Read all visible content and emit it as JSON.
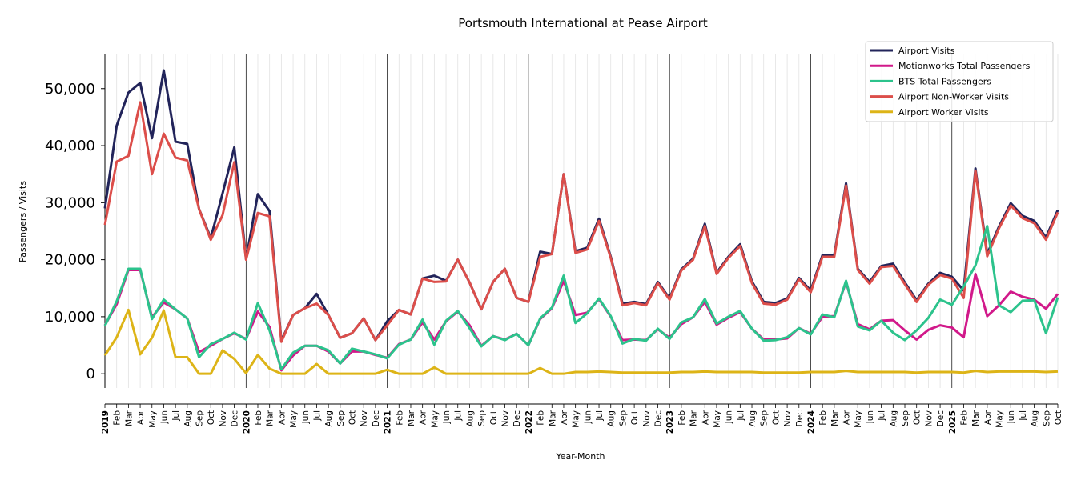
{
  "chart_data": {
    "type": "line",
    "title": "Portsmouth International at Pease Airport",
    "xlabel": "Year-Month",
    "ylabel": "Passengers / Visits",
    "ylim": [
      -2500,
      56000
    ],
    "yticks": [
      0,
      10000,
      20000,
      30000,
      40000,
      50000
    ],
    "ytick_labels": [
      "0",
      "10,000",
      "20,000",
      "30,000",
      "40,000",
      "50,000"
    ],
    "grid": "vertical monthly",
    "legend_position": "top-right",
    "categories": [
      "2019",
      "Feb",
      "Mar",
      "Apr",
      "May",
      "Jun",
      "Jul",
      "Aug",
      "Sep",
      "Oct",
      "Nov",
      "Dec",
      "2020",
      "Feb",
      "Mar",
      "Apr",
      "May",
      "Jun",
      "Jul",
      "Aug",
      "Sep",
      "Oct",
      "Nov",
      "Dec",
      "2021",
      "Feb",
      "Mar",
      "Apr",
      "May",
      "Jun",
      "Jul",
      "Aug",
      "Sep",
      "Oct",
      "Nov",
      "Dec",
      "2022",
      "Feb",
      "Mar",
      "Apr",
      "May",
      "Jun",
      "Jul",
      "Aug",
      "Sep",
      "Oct",
      "Nov",
      "Dec",
      "2023",
      "Feb",
      "Mar",
      "Apr",
      "May",
      "Jun",
      "Jul",
      "Aug",
      "Sep",
      "Oct",
      "Nov",
      "Dec",
      "2024",
      "Feb",
      "Mar",
      "Apr",
      "May",
      "Jun",
      "Jul",
      "Aug",
      "Sep",
      "Oct",
      "Nov",
      "Dec",
      "2025",
      "Feb",
      "Mar",
      "Apr",
      "May",
      "Jun",
      "Jul",
      "Aug",
      "Sep",
      "Oct"
    ],
    "series": [
      {
        "name": "Airport Visits",
        "color": "#22245a",
        "values": [
          29000,
          43500,
          49300,
          51000,
          41300,
          53200,
          40700,
          40300,
          28900,
          23800,
          31600,
          39700,
          20100,
          31500,
          28500,
          5800,
          10300,
          11500,
          14000,
          10300,
          6300,
          7100,
          9700,
          5900,
          9200,
          11200,
          10400,
          16700,
          17200,
          16300,
          20000,
          16000,
          11300,
          16100,
          18400,
          13300,
          12600,
          21400,
          21000,
          35000,
          21500,
          22100,
          27200,
          20500,
          12300,
          12600,
          12200,
          16100,
          13200,
          18300,
          20200,
          26300,
          17700,
          20500,
          22700,
          16200,
          12600,
          12400,
          13200,
          16800,
          14600,
          20800,
          20800,
          33400,
          18400,
          16100,
          18900,
          19300,
          16000,
          12900,
          15800,
          17700,
          17000,
          14600,
          36000,
          21000,
          25800,
          29900,
          27700,
          26800,
          23900,
          28700
        ]
      },
      {
        "name": "Motionworks Total Passengers",
        "color": "#d1198a",
        "values": [
          8500,
          12200,
          18200,
          18200,
          9900,
          12500,
          11300,
          9700,
          3800,
          4900,
          6100,
          7100,
          6100,
          10900,
          8200,
          600,
          3200,
          4900,
          4900,
          3900,
          1800,
          3900,
          3900,
          3300,
          2800,
          5200,
          6000,
          9000,
          6000,
          9200,
          10900,
          8500,
          4900,
          6600,
          6000,
          7000,
          5000,
          9600,
          11500,
          16300,
          10300,
          10700,
          13100,
          10000,
          5900,
          6000,
          5900,
          7800,
          6300,
          8700,
          9900,
          12600,
          8600,
          9800,
          10800,
          7900,
          6000,
          6000,
          6200,
          8000,
          7000,
          10000,
          10100,
          16100,
          8700,
          7800,
          9300,
          9400,
          7600,
          6000,
          7700,
          8500,
          8100,
          6400,
          17500,
          10100,
          12000,
          14400,
          13500,
          13000,
          11400,
          14000
        ]
      },
      {
        "name": "BTS Total Passengers",
        "color": "#2cc38c",
        "values": [
          8400,
          12700,
          18400,
          18400,
          9600,
          13000,
          11300,
          9700,
          2900,
          5200,
          6100,
          7200,
          6000,
          12400,
          7600,
          800,
          3700,
          4900,
          4900,
          4100,
          1800,
          4400,
          3900,
          3400,
          2700,
          5100,
          6000,
          9500,
          5100,
          9300,
          11000,
          8000,
          4800,
          6600,
          5900,
          7000,
          5000,
          9700,
          11600,
          17200,
          8900,
          10600,
          13200,
          10100,
          5300,
          6100,
          5800,
          7900,
          6100,
          9000,
          9900,
          13100,
          8800,
          10000,
          11000,
          7900,
          5800,
          5900,
          6400,
          8000,
          6900,
          10400,
          9900,
          16300,
          8300,
          7600,
          9300,
          7200,
          5900,
          7600,
          9800,
          13000,
          12100,
          15300,
          19000,
          25900,
          12000,
          10800,
          12800,
          12900,
          7100,
          13400
        ]
      },
      {
        "name": "Airport Non-Worker Visits",
        "color": "#dc4e4a",
        "values": [
          26100,
          37200,
          38200,
          47600,
          35000,
          42100,
          37900,
          37400,
          28900,
          23500,
          27800,
          37100,
          20000,
          28200,
          27600,
          5600,
          10300,
          11500,
          12300,
          10300,
          6300,
          7100,
          9700,
          5900,
          8500,
          11200,
          10400,
          16700,
          16100,
          16200,
          20000,
          16000,
          11300,
          16100,
          18400,
          13300,
          12600,
          20500,
          21000,
          35000,
          21200,
          21800,
          26800,
          20300,
          12000,
          12400,
          12000,
          15900,
          13000,
          18100,
          20000,
          25900,
          17500,
          20300,
          22400,
          15900,
          12300,
          12100,
          13000,
          16600,
          14300,
          20500,
          20500,
          33000,
          18200,
          15800,
          18700,
          18900,
          15700,
          12600,
          15600,
          17300,
          16700,
          13300,
          35600,
          20600,
          25500,
          29500,
          27300,
          26400,
          23500,
          28300
        ]
      },
      {
        "name": "Airport Worker Visits",
        "color": "#ddb417",
        "values": [
          3200,
          6400,
          11200,
          3400,
          6300,
          11100,
          2900,
          2900,
          0,
          0,
          4100,
          2600,
          100,
          3300,
          900,
          0,
          0,
          0,
          1700,
          0,
          0,
          0,
          0,
          0,
          700,
          0,
          0,
          0,
          1100,
          0,
          0,
          0,
          0,
          0,
          0,
          0,
          0,
          1000,
          0,
          0,
          300,
          300,
          400,
          300,
          200,
          200,
          200,
          200,
          200,
          300,
          300,
          400,
          300,
          300,
          300,
          300,
          200,
          200,
          200,
          200,
          300,
          300,
          300,
          500,
          300,
          300,
          300,
          300,
          300,
          200,
          300,
          300,
          300,
          200,
          500,
          300,
          400,
          400,
          400,
          400,
          300,
          400
        ]
      }
    ]
  }
}
